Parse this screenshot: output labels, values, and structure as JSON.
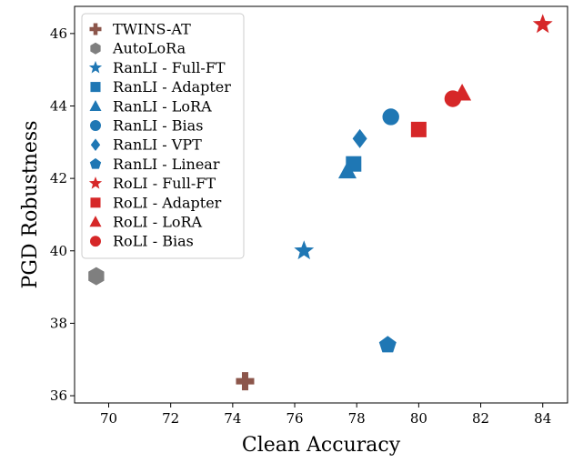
{
  "chart_data": {
    "type": "scatter",
    "xlabel": "Clean Accuracy",
    "ylabel": "PGD Robustness",
    "xlim": [
      68.9,
      84.8
    ],
    "ylim": [
      35.8,
      46.75
    ],
    "xticks": [
      70,
      72,
      74,
      76,
      78,
      80,
      82,
      84
    ],
    "yticks": [
      36,
      38,
      40,
      42,
      44,
      46
    ],
    "grid": false,
    "legend_position": "top-left",
    "colors": {
      "brown": "#8c564b",
      "gray": "#7f7f7f",
      "blue": "#1f77b4",
      "red": "#d62728"
    },
    "series": [
      {
        "name": "TWINS-AT",
        "marker": "plus",
        "color": "#8c564b",
        "x": 74.4,
        "y": 36.4
      },
      {
        "name": "AutoLoRa",
        "marker": "hexagon",
        "color": "#7f7f7f",
        "x": 69.6,
        "y": 39.3
      },
      {
        "name": "RanLI - Full-FT",
        "marker": "star",
        "color": "#1f77b4",
        "x": 76.3,
        "y": 40.0
      },
      {
        "name": "RanLI - Adapter",
        "marker": "square",
        "color": "#1f77b4",
        "x": 77.9,
        "y": 42.4
      },
      {
        "name": "RanLI - LoRA",
        "marker": "triangle",
        "color": "#1f77b4",
        "x": 77.7,
        "y": 42.2
      },
      {
        "name": "RanLI - Bias",
        "marker": "circle",
        "color": "#1f77b4",
        "x": 79.1,
        "y": 43.7
      },
      {
        "name": "RanLI - VPT",
        "marker": "diamond",
        "color": "#1f77b4",
        "x": 78.1,
        "y": 43.1
      },
      {
        "name": "RanLI - Linear",
        "marker": "pentagon",
        "color": "#1f77b4",
        "x": 79.0,
        "y": 37.4
      },
      {
        "name": "RoLI - Full-FT",
        "marker": "star",
        "color": "#d62728",
        "x": 84.0,
        "y": 46.25
      },
      {
        "name": "RoLI - Adapter",
        "marker": "square",
        "color": "#d62728",
        "x": 80.0,
        "y": 43.35
      },
      {
        "name": "RoLI - LoRA",
        "marker": "triangle",
        "color": "#d62728",
        "x": 81.4,
        "y": 44.35
      },
      {
        "name": "RoLI - Bias",
        "marker": "circle",
        "color": "#d62728",
        "x": 81.1,
        "y": 44.2
      }
    ]
  }
}
